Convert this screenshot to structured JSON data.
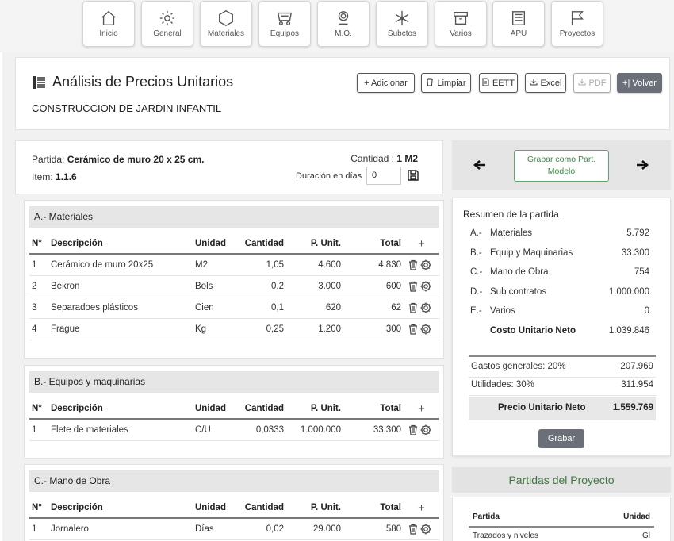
{
  "nav": [
    {
      "label": "Inicio",
      "icon": "home-icon"
    },
    {
      "label": "General",
      "icon": "gear-icon"
    },
    {
      "label": "Materiales",
      "icon": "hexagon-icon"
    },
    {
      "label": "Equipos",
      "icon": "cart-icon"
    },
    {
      "label": "M.O.",
      "icon": "worker-icon"
    },
    {
      "label": "Subctos",
      "icon": "snowflake-icon"
    },
    {
      "label": "Varios",
      "icon": "archive-icon"
    },
    {
      "label": "APU",
      "icon": "document-icon"
    },
    {
      "label": "Proyectos",
      "icon": "flag-icon"
    }
  ],
  "header": {
    "title": "Análisis de Precios Unitarios",
    "project": "CONSTRUCCION DE JARDIN INFANTIL",
    "buttons": {
      "adicionar": "+ Adicionar",
      "limpiar": "Limpiar",
      "eett": "EETT",
      "excel": "Excel",
      "pdf": "PDF",
      "volver": "+| Volver"
    }
  },
  "partida": {
    "partida_label": "Partida:",
    "partida_value": "Cerámico de muro 20 x 25 cm.",
    "item_label": "Item:",
    "item_value": "1.1.6",
    "cantidad_label": "Cantidad :",
    "cantidad_value": "1 M2",
    "duracion_label": "Duración en días",
    "duracion_value": "0"
  },
  "columns": {
    "n": "N°",
    "desc": "Descripción",
    "unidad": "Unidad",
    "cantidad": "Cantidad",
    "punit": "P. Unit.",
    "total": "Total",
    "add": "+"
  },
  "materiales": {
    "title": "A.- Materiales",
    "rows": [
      {
        "n": "1",
        "desc": "Cerámico de muro 20x25",
        "unidad": "M2",
        "cantidad": "1,05",
        "punit": "4.600",
        "total": "4.830"
      },
      {
        "n": "2",
        "desc": "Bekron",
        "unidad": "Bols",
        "cantidad": "0,2",
        "punit": "3.000",
        "total": "600"
      },
      {
        "n": "3",
        "desc": "Separadoes plásticos",
        "unidad": "Cien",
        "cantidad": "0,1",
        "punit": "620",
        "total": "62"
      },
      {
        "n": "4",
        "desc": "Frague",
        "unidad": "Kg",
        "cantidad": "0,25",
        "punit": "1.200",
        "total": "300"
      }
    ]
  },
  "equipos": {
    "title": "B.- Equipos y maquinarias",
    "rows": [
      {
        "n": "1",
        "desc": "Flete de materiales",
        "unidad": "C/U",
        "cantidad": "0,0333",
        "punit": "1.000.000",
        "total": "33.300"
      }
    ]
  },
  "mano_obra": {
    "title": "C.- Mano de Obra",
    "rows": [
      {
        "n": "1",
        "desc": "Jornalero",
        "unidad": "Días",
        "cantidad": "0,02",
        "punit": "29.000",
        "total": "580"
      }
    ]
  },
  "navcard": {
    "grabar_modelo": "Grabar como Part. Modelo"
  },
  "resumen": {
    "title": "Resumen de la partida",
    "rows": [
      {
        "k": "A.-",
        "n": "Materiales",
        "v": "5.792"
      },
      {
        "k": "B.-",
        "n": "Equip y Maquinarias",
        "v": "33.300"
      },
      {
        "k": "C.-",
        "n": "Mano de Obra",
        "v": "754"
      },
      {
        "k": "D.-",
        "n": "Sub contratos",
        "v": "1.000.000"
      },
      {
        "k": "E.-",
        "n": "Varios",
        "v": "0"
      }
    ],
    "costo_label": "Costo Unitario Neto",
    "costo_value": "1.039.846",
    "gastos_label": "Gastos generales: 20%",
    "gastos_value": "207.969",
    "utilidades_label": "Utilidades: 30%",
    "utilidades_value": "311.954",
    "precio_label": "Precio Unitario Neto",
    "precio_value": "1.559.769",
    "grabar": "Grabar"
  },
  "partidas_proyecto": {
    "title": "Partidas del Proyecto",
    "col_partida": "Partida",
    "col_unidad": "Unidad",
    "rows": [
      {
        "partida": "Trazados y niveles",
        "unidad": "Gl"
      }
    ]
  }
}
